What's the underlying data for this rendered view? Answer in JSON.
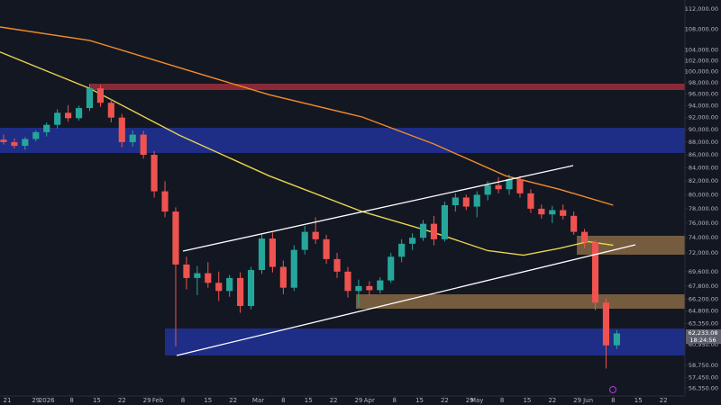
{
  "chart_data": {
    "type": "candlestick",
    "log_scale": true,
    "grid": false,
    "up_color": "#26a69a",
    "down_color": "#ef5350",
    "xlim": [
      -13,
      178
    ],
    "ylim": [
      55560,
      113840
    ],
    "xticks": [
      {
        "value": -11,
        "label": "21"
      },
      {
        "value": -3,
        "label": "29"
      },
      {
        "value": 0,
        "label": "2026"
      },
      {
        "value": 7,
        "label": "8"
      },
      {
        "value": 14,
        "label": "15"
      },
      {
        "value": 21,
        "label": "22"
      },
      {
        "value": 28,
        "label": "29"
      },
      {
        "value": 31,
        "label": "Feb"
      },
      {
        "value": 38,
        "label": "8"
      },
      {
        "value": 45,
        "label": "15"
      },
      {
        "value": 52,
        "label": "22"
      },
      {
        "value": 59,
        "label": "Mar"
      },
      {
        "value": 66,
        "label": "8"
      },
      {
        "value": 73,
        "label": "15"
      },
      {
        "value": 80,
        "label": "22"
      },
      {
        "value": 87,
        "label": "29"
      },
      {
        "value": 90,
        "label": "Apr"
      },
      {
        "value": 97,
        "label": "8"
      },
      {
        "value": 104,
        "label": "15"
      },
      {
        "value": 111,
        "label": "22"
      },
      {
        "value": 118,
        "label": "29"
      },
      {
        "value": 120,
        "label": "May"
      },
      {
        "value": 127,
        "label": "8"
      },
      {
        "value": 134,
        "label": "15"
      },
      {
        "value": 141,
        "label": "22"
      },
      {
        "value": 148,
        "label": "29"
      },
      {
        "value": 151,
        "label": "Jun"
      },
      {
        "value": 158,
        "label": "8"
      },
      {
        "value": 165,
        "label": "15"
      },
      {
        "value": 172,
        "label": "22"
      }
    ],
    "yticks": [
      {
        "value": 112000,
        "label": "112,000.00"
      },
      {
        "value": 108000,
        "label": "108,000.00"
      },
      {
        "value": 104000,
        "label": "104,000.00"
      },
      {
        "value": 102000,
        "label": "102,000.00"
      },
      {
        "value": 100000,
        "label": "100,000.00"
      },
      {
        "value": 98000,
        "label": "98,000.00"
      },
      {
        "value": 96000,
        "label": "96,000.00"
      },
      {
        "value": 94000,
        "label": "94,000.00"
      },
      {
        "value": 92000,
        "label": "92,000.00"
      },
      {
        "value": 90000,
        "label": "90,000.00"
      },
      {
        "value": 88000,
        "label": "88,000.00"
      },
      {
        "value": 86000,
        "label": "86,000.00"
      },
      {
        "value": 84000,
        "label": "84,000.00"
      },
      {
        "value": 82000,
        "label": "82,000.00"
      },
      {
        "value": 80000,
        "label": "80,000.00"
      },
      {
        "value": 78000,
        "label": "78,000.00"
      },
      {
        "value": 76000,
        "label": "76,000.00"
      },
      {
        "value": 74000,
        "label": "74,000.00"
      },
      {
        "value": 72000,
        "label": "72,000.00"
      },
      {
        "value": 69600,
        "label": "69,600.00"
      },
      {
        "value": 67800,
        "label": "67,800.00"
      },
      {
        "value": 66200,
        "label": "66,200.00"
      },
      {
        "value": 64800,
        "label": "64,800.00"
      },
      {
        "value": 63350,
        "label": "63,350.00"
      },
      {
        "value": 60950,
        "label": "60,950.00"
      },
      {
        "value": 58750,
        "label": "58,750.00"
      },
      {
        "value": 57450,
        "label": "57,450.00"
      },
      {
        "value": 56350,
        "label": "56,350.00"
      }
    ],
    "x": [
      -12,
      -9,
      -6,
      -3,
      0,
      3,
      6,
      9,
      12,
      15,
      18,
      21,
      24,
      27,
      30,
      33,
      36,
      39,
      42,
      45,
      48,
      51,
      54,
      57,
      60,
      63,
      66,
      69,
      72,
      75,
      78,
      81,
      84,
      87,
      90,
      93,
      96,
      99,
      102,
      105,
      108,
      111,
      114,
      117,
      120,
      123,
      126,
      129,
      132,
      135,
      138,
      141,
      144,
      147,
      150,
      153,
      156,
      159
    ],
    "open": [
      88400,
      88000,
      87400,
      88500,
      89600,
      90800,
      92800,
      91900,
      93600,
      97000,
      94500,
      92000,
      88000,
      89200,
      86000,
      80500,
      77600,
      70500,
      68800,
      69400,
      68200,
      67200,
      68800,
      65400,
      69800,
      73900,
      70200,
      67600,
      72400,
      74800,
      73800,
      71200,
      69600,
      67200,
      67800,
      67300,
      68500,
      71500,
      73200,
      74000,
      75900,
      73800,
      78500,
      79600,
      78300,
      80000,
      81400,
      80800,
      82300,
      80200,
      78000,
      77200,
      77800,
      77000,
      74800,
      73400,
      65800,
      60900
    ],
    "high": [
      89200,
      88600,
      88800,
      89900,
      91200,
      93400,
      94100,
      94000,
      97800,
      97600,
      95200,
      92600,
      89900,
      89800,
      86600,
      82000,
      78200,
      71500,
      70300,
      70800,
      69600,
      69200,
      69500,
      70200,
      74600,
      74700,
      71000,
      73000,
      75600,
      76800,
      74400,
      72000,
      70200,
      68600,
      68400,
      68900,
      72000,
      73800,
      74600,
      76400,
      77000,
      79000,
      80200,
      80000,
      80500,
      82000,
      82600,
      83000,
      82800,
      80800,
      78600,
      78400,
      78600,
      77600,
      75200,
      73700,
      66300,
      62600
    ],
    "low": [
      87600,
      87000,
      86800,
      88100,
      88900,
      90200,
      91300,
      91500,
      93100,
      93800,
      91200,
      87200,
      87300,
      85400,
      79600,
      76800,
      60800,
      67400,
      66700,
      67600,
      66000,
      66500,
      64600,
      65000,
      69300,
      69500,
      66800,
      67200,
      71800,
      73200,
      70600,
      68800,
      66400,
      65300,
      66700,
      66900,
      68200,
      70800,
      72400,
      73600,
      73000,
      73500,
      77600,
      77800,
      76800,
      79200,
      80200,
      80000,
      79600,
      77400,
      76600,
      76000,
      76500,
      74400,
      72600,
      64900,
      58400,
      60500
    ],
    "close": [
      88000,
      87400,
      88500,
      89600,
      90800,
      92800,
      91900,
      93600,
      97000,
      94500,
      92000,
      88000,
      89200,
      86000,
      80500,
      77600,
      70500,
      68800,
      69400,
      68200,
      67200,
      68800,
      65400,
      69800,
      73900,
      70200,
      67600,
      72400,
      74800,
      73800,
      71200,
      69600,
      67200,
      67800,
      67300,
      68500,
      71500,
      73200,
      74000,
      75900,
      73800,
      78500,
      79600,
      78300,
      80000,
      81400,
      80800,
      82300,
      80200,
      78000,
      77200,
      77800,
      77000,
      74800,
      73400,
      65800,
      60900,
      62233.08
    ],
    "series": [
      {
        "color": "#f28c28",
        "x": [
          -13,
          12,
          37,
          62,
          88,
          108,
          128,
          143,
          158
        ],
        "values": [
          108400,
          105800,
          100700,
          95900,
          92100,
          87700,
          82800,
          80800,
          78500
        ]
      },
      {
        "color": "#e8d44d",
        "x": [
          -13,
          0,
          12,
          25,
          37,
          62,
          88,
          108,
          123,
          133,
          143,
          151,
          158
        ],
        "values": [
          103600,
          100100,
          97000,
          92800,
          89100,
          82800,
          77600,
          74700,
          72300,
          71700,
          72600,
          73500,
          73000
        ]
      }
    ],
    "last_price_label": "62,233.08",
    "countdown": "18:24:56"
  }
}
